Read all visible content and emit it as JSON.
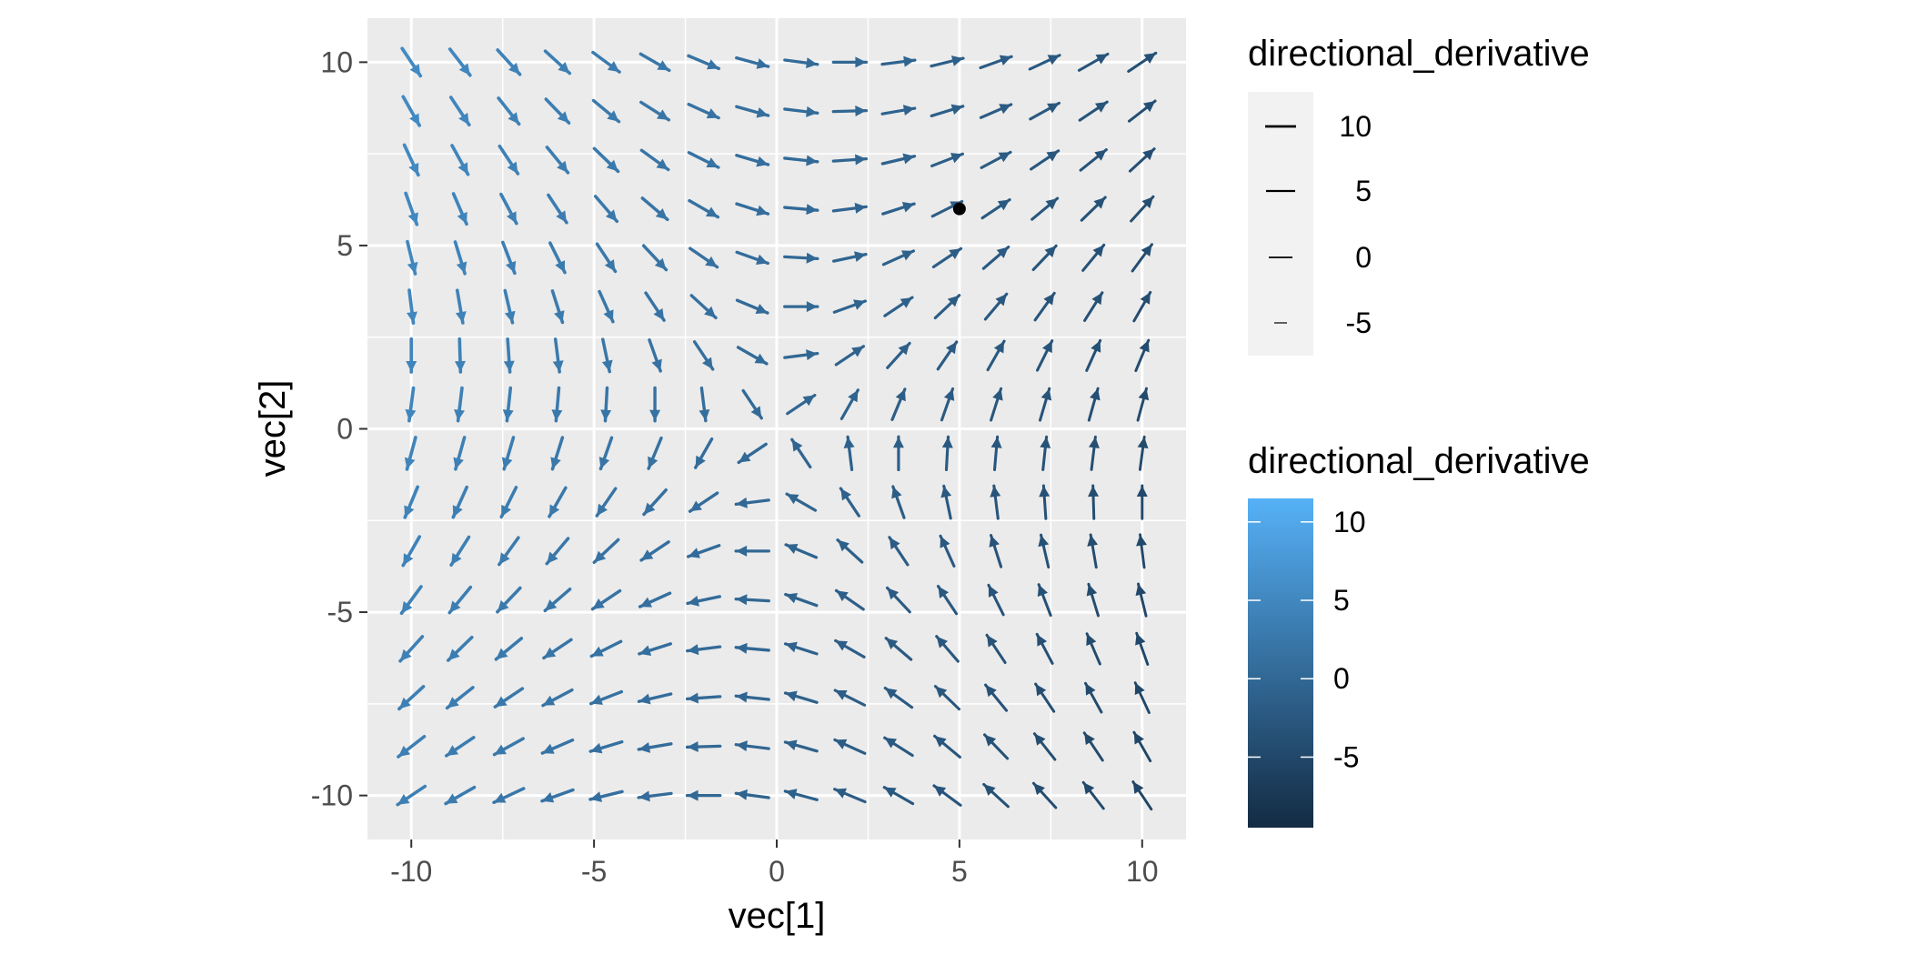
{
  "chart_data": {
    "type": "quiver",
    "xlabel": "vec[1]",
    "ylabel": "vec[2]",
    "xlim": [
      -11.2,
      11.2
    ],
    "ylim": [
      -11.2,
      11.2
    ],
    "x_ticks": [
      -10,
      -5,
      0,
      5,
      10
    ],
    "y_ticks": [
      -10,
      -5,
      0,
      5,
      10
    ],
    "x_tick_labels": [
      "-10",
      "-5",
      "0",
      "5",
      "10"
    ],
    "y_tick_labels": [
      "-10",
      "-5",
      "0",
      "5",
      "10"
    ],
    "grid": true,
    "grid_values": [
      -10,
      -8.6667,
      -7.3333,
      -6,
      -4.6667,
      -3.3333,
      -2,
      -0.6667,
      0.6667,
      2,
      3.3333,
      4.6667,
      6,
      7.3333,
      8.6667,
      10
    ],
    "vector_field": "gradient of f(x,y) = 0.5*x*y + 0.05*x^2 - 0.05*y^2, displayed as unit-length arrows",
    "color_variable": "directional_derivative",
    "color_scale": {
      "low": "#132b43",
      "high": "#56b1f7",
      "min": -9.5,
      "max": 11.5
    },
    "highlight_point": {
      "x": 5,
      "y": 6,
      "color": "#000000"
    },
    "legend_linewidth": {
      "title": "directional_derivative",
      "labels": [
        "10",
        "5",
        "0",
        "-5"
      ],
      "values": [
        10,
        5,
        0,
        -5
      ],
      "placement": "right"
    },
    "legend_color": {
      "title": "directional_derivative",
      "labels": [
        "10",
        "5",
        "0",
        "-5"
      ],
      "values": [
        10,
        5,
        0,
        -5
      ],
      "placement": "right"
    }
  }
}
